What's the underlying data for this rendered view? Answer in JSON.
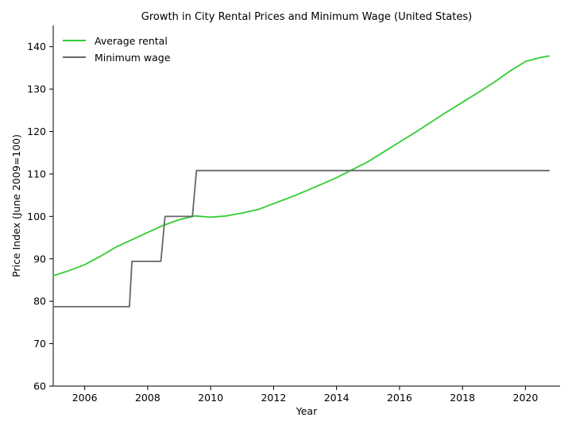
{
  "chart_data": {
    "type": "line",
    "title": "Growth in City Rental Prices and Minimum Wage (United States)",
    "xlabel": "Year",
    "ylabel": "Price Index (June 2009=100)",
    "xlim": [
      2005.0,
      2021.1
    ],
    "ylim": [
      60,
      145
    ],
    "xticks": [
      2006,
      2008,
      2010,
      2012,
      2014,
      2016,
      2018,
      2020
    ],
    "yticks": [
      60,
      70,
      80,
      90,
      100,
      110,
      120,
      130,
      140
    ],
    "grid": false,
    "legend_position": "top-left",
    "series": [
      {
        "name": "Average rental",
        "color": "#33cc33",
        "x": [
          2005.0,
          2005.5,
          2006.0,
          2006.5,
          2007.0,
          2007.5,
          2008.0,
          2008.5,
          2009.0,
          2009.5,
          2010.0,
          2010.5,
          2011.0,
          2011.5,
          2012.0,
          2012.5,
          2013.0,
          2013.5,
          2014.0,
          2014.5,
          2015.0,
          2015.5,
          2016.0,
          2016.5,
          2017.0,
          2017.5,
          2018.0,
          2018.5,
          2019.0,
          2019.5,
          2020.0,
          2020.5,
          2020.75
        ],
        "y": [
          86.0,
          87.2,
          88.6,
          90.6,
          92.8,
          94.5,
          96.2,
          97.9,
          99.2,
          100.1,
          99.8,
          100.1,
          100.8,
          101.6,
          103.0,
          104.4,
          105.9,
          107.5,
          109.1,
          111.0,
          112.9,
          115.2,
          117.5,
          119.8,
          122.2,
          124.6,
          126.9,
          129.2,
          131.6,
          134.2,
          136.5,
          137.5,
          137.8
        ]
      },
      {
        "name": "Minimum wage",
        "color": "#666666",
        "step": true,
        "x": [
          2005.0,
          2007.42,
          2007.5,
          2008.42,
          2008.55,
          2009.42,
          2009.55,
          2020.75
        ],
        "y": [
          78.7,
          78.7,
          89.4,
          89.4,
          100.0,
          100.0,
          110.8,
          110.8
        ]
      }
    ]
  }
}
